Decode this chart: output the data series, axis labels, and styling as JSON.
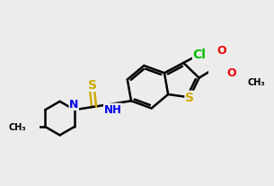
{
  "bg": "#ececec",
  "bc": "#000000",
  "bw": 1.8,
  "atom_colors": {
    "S": "#ccaa00",
    "N": "#0000ee",
    "O": "#ee0000",
    "Cl": "#00bb00",
    "C": "#000000"
  },
  "fs": 9,
  "dbo": 0.045
}
